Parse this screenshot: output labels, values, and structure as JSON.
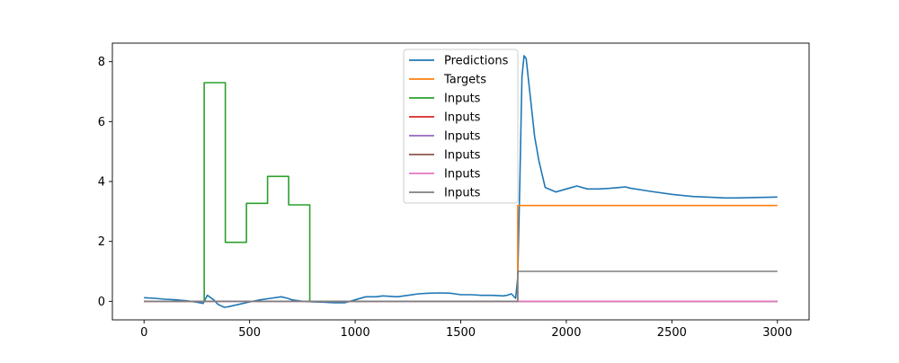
{
  "chart_data": {
    "type": "line",
    "title": "",
    "xlabel": "",
    "ylabel": "",
    "xlim": [
      -150,
      3150
    ],
    "ylim": [
      -0.62,
      8.62
    ],
    "xticks": [
      0,
      500,
      1000,
      1500,
      2000,
      2500,
      3000
    ],
    "yticks": [
      0,
      2,
      4,
      6,
      8
    ],
    "xtick_labels": [
      "0",
      "500",
      "1000",
      "1500",
      "2000",
      "2500",
      "3000"
    ],
    "ytick_labels": [
      "0",
      "2",
      "4",
      "6",
      "8"
    ],
    "grid": false,
    "legend": {
      "position": "top-center",
      "entries": [
        "Predictions",
        "Targets",
        "Inputs",
        "Inputs",
        "Inputs",
        "Inputs",
        "Inputs",
        "Inputs"
      ]
    },
    "series": [
      {
        "name": "Predictions",
        "color": "#1f77b4",
        "step": false,
        "x": [
          0,
          50,
          100,
          150,
          200,
          250,
          280,
          300,
          330,
          350,
          380,
          400,
          450,
          500,
          550,
          600,
          650,
          680,
          700,
          750,
          800,
          850,
          900,
          950,
          1000,
          1050,
          1100,
          1130,
          1200,
          1250,
          1300,
          1350,
          1400,
          1450,
          1500,
          1550,
          1600,
          1650,
          1700,
          1720,
          1740,
          1760,
          1770,
          1780,
          1790,
          1800,
          1810,
          1830,
          1850,
          1870,
          1900,
          1950,
          2000,
          2050,
          2100,
          2150,
          2200,
          2250,
          2280,
          2300,
          2400,
          2500,
          2600,
          2700,
          2750,
          2800,
          3000
        ],
        "y": [
          0.12,
          0.1,
          0.07,
          0.05,
          0.02,
          -0.03,
          -0.07,
          0.2,
          0.05,
          -0.1,
          -0.2,
          -0.18,
          -0.1,
          -0.02,
          0.05,
          0.1,
          0.15,
          0.1,
          0.05,
          0.0,
          -0.02,
          -0.03,
          -0.05,
          -0.05,
          0.05,
          0.15,
          0.15,
          0.18,
          0.15,
          0.2,
          0.25,
          0.27,
          0.28,
          0.27,
          0.22,
          0.22,
          0.2,
          0.2,
          0.18,
          0.2,
          0.25,
          0.1,
          0.8,
          4.0,
          7.5,
          8.2,
          8.1,
          6.8,
          5.5,
          4.7,
          3.8,
          3.65,
          3.75,
          3.85,
          3.75,
          3.75,
          3.77,
          3.8,
          3.82,
          3.78,
          3.67,
          3.57,
          3.5,
          3.47,
          3.45,
          3.45,
          3.48
        ]
      },
      {
        "name": "Targets",
        "color": "#ff7f0e",
        "step": true,
        "x": [
          1760,
          1770,
          3000
        ],
        "y": [
          0,
          3.2,
          3.2
        ]
      },
      {
        "name": "Inputs",
        "color": "#2ca02c",
        "step": true,
        "x": [
          0,
          285,
          385,
          485,
          585,
          685,
          785,
          3000
        ],
        "y": [
          0,
          7.3,
          1.97,
          3.27,
          4.17,
          3.22,
          0.0,
          0.0
        ]
      },
      {
        "name": "Inputs",
        "color": "#d62728",
        "step": true,
        "x": [
          0,
          3000
        ],
        "y": [
          0,
          0
        ]
      },
      {
        "name": "Inputs",
        "color": "#9467bd",
        "step": true,
        "x": [
          0,
          3000
        ],
        "y": [
          0,
          0
        ]
      },
      {
        "name": "Inputs",
        "color": "#8c564b",
        "step": true,
        "x": [
          0,
          3000
        ],
        "y": [
          0,
          0
        ]
      },
      {
        "name": "Inputs",
        "color": "#e377c2",
        "step": true,
        "x": [
          0,
          3000
        ],
        "y": [
          0,
          0
        ]
      },
      {
        "name": "Inputs",
        "color": "#7f7f7f",
        "step": true,
        "x": [
          0,
          1770,
          3000
        ],
        "y": [
          0,
          1.0,
          1.0
        ]
      }
    ]
  }
}
